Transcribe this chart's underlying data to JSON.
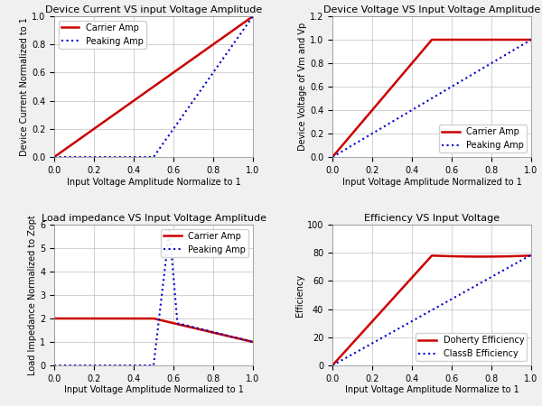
{
  "fig_width": 6.0,
  "fig_height": 4.5,
  "bg_color": "#f0f0f0",
  "plot_bg_color": "#ffffff",
  "grid_color": "#c0c0c0",
  "carrier_color": "#cc0000",
  "peaking_color": "#0000cc",
  "carrier_lw": 1.8,
  "peaking_lw": 1.5,
  "font_size_title": 8,
  "font_size_label": 7,
  "font_size_tick": 7,
  "font_size_legend": 7,
  "plot1": {
    "title": "Device Current VS input Voltage Amplitude",
    "xlabel": "Input Voltage Amplitude Normalize to 1",
    "ylabel": "Device Current Normalized to 1",
    "xlim": [
      0.0,
      1.0
    ],
    "ylim": [
      0.0,
      1.0
    ],
    "xticks": [
      0.0,
      0.2,
      0.4,
      0.6,
      0.8,
      1.0
    ],
    "yticks": [
      0.0,
      0.2,
      0.4,
      0.6,
      0.8,
      1.0
    ]
  },
  "plot2": {
    "title": "Device Voltage VS Input Voltage Amplitude",
    "xlabel": "Input Voltage Amplitude Normalized to 1",
    "ylabel": "Device Voltage of Vm and Vp",
    "xlim": [
      0.0,
      1.0
    ],
    "ylim": [
      0.0,
      1.2
    ],
    "xticks": [
      0.0,
      0.2,
      0.4,
      0.6,
      0.8,
      1.0
    ],
    "yticks": [
      0.0,
      0.2,
      0.4,
      0.6,
      0.8,
      1.0,
      1.2
    ]
  },
  "plot3": {
    "title": "Load impedance VS Input Voltage Amplitude",
    "xlabel": "Input Voltage Amplitude Normalized to 1",
    "ylabel": "Load Impedance Normalized to Zopt",
    "xlim": [
      0.0,
      1.0
    ],
    "ylim": [
      0.0,
      6.0
    ],
    "xticks": [
      0.0,
      0.2,
      0.4,
      0.6,
      0.8,
      1.0
    ],
    "yticks": [
      0,
      1,
      2,
      3,
      4,
      5,
      6
    ]
  },
  "plot4": {
    "title": "Efficiency VS Input Voltage",
    "xlabel": "Input Voltage Amplitude Normalize to 1",
    "ylabel": "Efficiency",
    "xlim": [
      0.0,
      1.0
    ],
    "ylim": [
      0.0,
      100.0
    ],
    "xticks": [
      0.0,
      0.2,
      0.4,
      0.6,
      0.8,
      1.0
    ],
    "yticks": [
      0,
      20,
      40,
      60,
      80,
      100
    ]
  }
}
